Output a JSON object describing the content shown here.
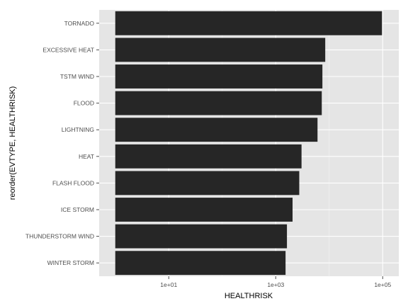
{
  "chart_data": {
    "type": "bar",
    "orientation": "horizontal",
    "xscale": "log10",
    "xlabel": "HEALTHRISK",
    "ylabel": "reorder(EVTYPE, HEALTHRISK)",
    "categories": [
      "TORNADO",
      "EXCESSIVE HEAT",
      "TSTM WIND",
      "FLOOD",
      "LIGHTNING",
      "HEAT",
      "FLASH FLOOD",
      "ICE STORM",
      "THUNDERSTORM WIND",
      "WINTER STORM"
    ],
    "values": [
      96979,
      8428,
      7461,
      7259,
      6046,
      3037,
      2755,
      2064,
      1621,
      1527
    ],
    "x_ticks": [
      {
        "value": 10,
        "label": "1e+01"
      },
      {
        "value": 1000,
        "label": "1e+03"
      },
      {
        "value": 100000,
        "label": "1e+05"
      }
    ],
    "xlim": [
      0.5,
      200000
    ],
    "bar_baseline": 1,
    "grid": true,
    "colors": {
      "bar": "#262626",
      "panel": "#e5e5e5",
      "grid_major": "#ffffff",
      "grid_minor": "#f2f2f2"
    }
  }
}
